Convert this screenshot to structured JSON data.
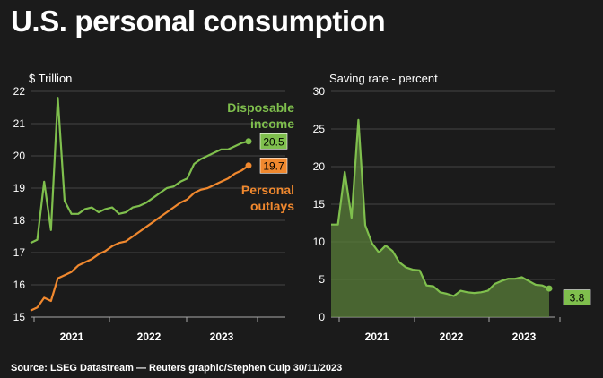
{
  "title": "U.S. personal consumption",
  "source": "Source: LSEG Datastream — Reuters graphic/Stephen Culp 30/11/2023",
  "colors": {
    "background": "#1b1b1b",
    "grid": "#555555",
    "green": "#7fbf4d",
    "orange": "#f0882e",
    "area": "#5a7f3a"
  },
  "chart_data": [
    {
      "type": "line",
      "ylabel": "$ Trillion",
      "ylim": [
        15,
        22
      ],
      "yticks": [
        "15",
        "16",
        "17",
        "18",
        "19",
        "20",
        "21",
        "22"
      ],
      "xticks": [
        "2021",
        "2022",
        "2023"
      ],
      "grid": true,
      "series": [
        {
          "name": "Disposable income",
          "color": "#7fbf4d",
          "end_label": "20.5",
          "values": [
            17.3,
            17.4,
            19.2,
            17.7,
            21.8,
            18.6,
            18.2,
            18.2,
            18.35,
            18.4,
            18.25,
            18.35,
            18.4,
            18.2,
            18.25,
            18.4,
            18.45,
            18.55,
            18.7,
            18.85,
            19.0,
            19.05,
            19.2,
            19.3,
            19.75,
            19.9,
            20.0,
            20.1,
            20.2,
            20.2,
            20.3,
            20.4,
            20.45
          ]
        },
        {
          "name": "Personal outlays",
          "color": "#f0882e",
          "end_label": "19.7",
          "values": [
            15.2,
            15.3,
            15.6,
            15.5,
            16.2,
            16.3,
            16.4,
            16.6,
            16.7,
            16.8,
            16.95,
            17.05,
            17.2,
            17.3,
            17.35,
            17.5,
            17.65,
            17.8,
            17.95,
            18.1,
            18.25,
            18.4,
            18.55,
            18.65,
            18.85,
            18.95,
            19.0,
            19.1,
            19.2,
            19.3,
            19.45,
            19.55,
            19.7
          ]
        }
      ]
    },
    {
      "type": "area",
      "ylabel": "Saving rate - percent",
      "ylim": [
        0,
        30
      ],
      "yticks": [
        "0",
        "5",
        "10",
        "15",
        "20",
        "25",
        "30"
      ],
      "xticks": [
        "2021",
        "2022",
        "2023"
      ],
      "grid": true,
      "series": [
        {
          "name": "Saving rate",
          "color": "#7fbf4d",
          "end_label": "3.8",
          "values": [
            12.3,
            12.3,
            19.3,
            13.2,
            26.2,
            12.2,
            9.8,
            8.6,
            9.5,
            8.8,
            7.3,
            6.6,
            6.3,
            6.2,
            4.2,
            4.1,
            3.3,
            3.1,
            2.8,
            3.5,
            3.3,
            3.2,
            3.3,
            3.5,
            4.4,
            4.8,
            5.1,
            5.1,
            5.3,
            4.8,
            4.3,
            4.2,
            3.8
          ]
        }
      ]
    }
  ]
}
